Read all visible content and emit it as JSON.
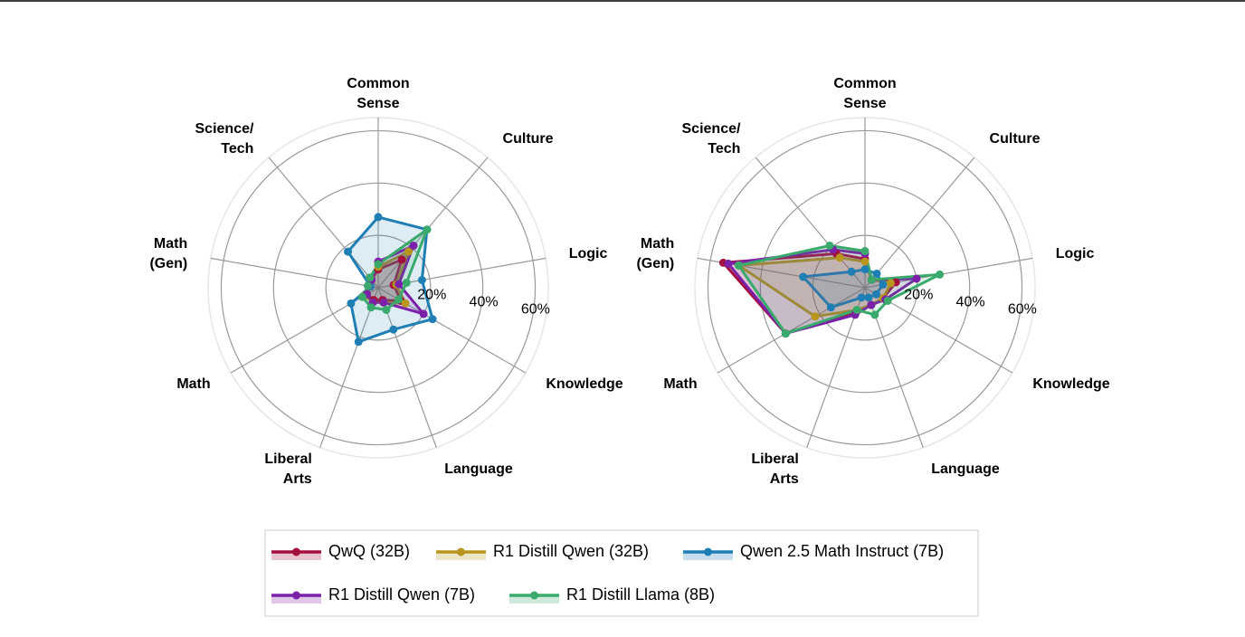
{
  "chart_data": [
    {
      "type": "radar",
      "categories": [
        "Common Sense",
        "Culture",
        "Logic",
        "Knowledge",
        "Language",
        "Liberal Arts",
        "Math",
        "Math (Gen)",
        "Science/Tech"
      ],
      "rlim": [
        0,
        65
      ],
      "rticks": [
        {
          "value": 20,
          "label": "20%"
        },
        {
          "value": 40,
          "label": "40%"
        },
        {
          "value": 60,
          "label": "60%"
        }
      ],
      "series": [
        {
          "name": "QwQ (32B)",
          "color": "#a50f3e",
          "values": [
            7,
            14,
            6,
            10,
            5,
            5,
            5,
            3,
            4
          ]
        },
        {
          "name": "R1 Distill Qwen (32B)",
          "color": "#b8961e",
          "values": [
            8,
            18,
            7,
            12,
            6,
            6,
            6,
            3,
            5
          ]
        },
        {
          "name": "Qwen 2.5 Math Instruct (7B)",
          "color": "#1f7fb4",
          "values": [
            27,
            29,
            17,
            24,
            17,
            22,
            12,
            3,
            18
          ]
        },
        {
          "name": "R1 Distill Qwen (7B)",
          "color": "#7b20a8",
          "values": [
            10,
            21,
            8,
            20,
            6,
            6,
            5,
            4,
            4
          ]
        },
        {
          "name": "R1 Distill Llama (8B)",
          "color": "#3aaa6c",
          "values": [
            9,
            29,
            11,
            9,
            9,
            8,
            7,
            4,
            5
          ]
        }
      ]
    },
    {
      "type": "radar",
      "categories": [
        "Common Sense",
        "Culture",
        "Logic",
        "Knowledge",
        "Language",
        "Liberal Arts",
        "Math",
        "Math (Gen)",
        "Science/Tech"
      ],
      "rlim": [
        0,
        65
      ],
      "rticks": [
        {
          "value": 20,
          "label": "20%"
        },
        {
          "value": 40,
          "label": "40%"
        },
        {
          "value": 60,
          "label": "60%"
        }
      ],
      "series": [
        {
          "name": "QwQ (32B)",
          "color": "#a50f3e",
          "values": [
            11,
            4,
            12,
            8,
            7,
            10,
            35,
            55,
            17
          ]
        },
        {
          "name": "R1 Distill Qwen (32B)",
          "color": "#b8961e",
          "values": [
            10,
            4,
            10,
            8,
            7,
            9,
            22,
            49,
            15
          ]
        },
        {
          "name": "Qwen 2.5 Math Instruct (7B)",
          "color": "#1f7fb4",
          "values": [
            7,
            7,
            7,
            5,
            4,
            4,
            15,
            24,
            8
          ]
        },
        {
          "name": "R1 Distill Qwen (7B)",
          "color": "#7b20a8",
          "values": [
            13,
            4,
            20,
            9,
            7,
            11,
            35,
            53,
            19
          ]
        },
        {
          "name": "R1 Distill Llama (8B)",
          "color": "#3aaa6c",
          "values": [
            14,
            4,
            29,
            10,
            11,
            9,
            35,
            49,
            21
          ]
        }
      ]
    }
  ]
}
